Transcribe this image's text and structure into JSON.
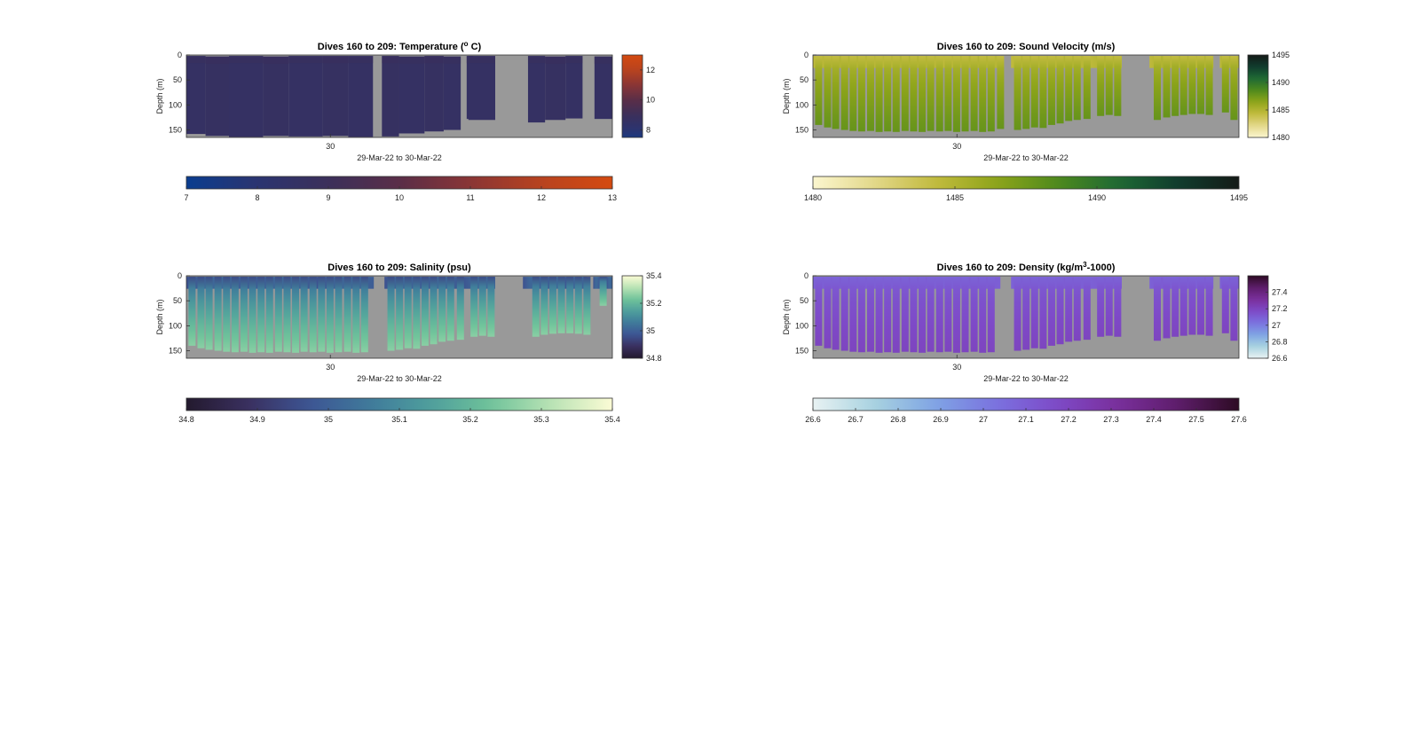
{
  "chart_data": [
    {
      "type": "heatmap",
      "variable": "temperature",
      "title_main": "Dives 160 to 209: Temperature (",
      "title_sup": "o",
      "title_tail": " C)",
      "ylabel": "Depth (m)",
      "xlabel": "29-Mar-22 to 30-Mar-22",
      "x_tick_labels": [
        "30"
      ],
      "y_ticks": [
        0,
        50,
        100,
        150
      ],
      "ylim": [
        0,
        165
      ],
      "colorbar_side_ticks": [
        8,
        10,
        12
      ],
      "colorbar_side_range": [
        7.5,
        13
      ],
      "colorbar_bottom_ticks": [
        7,
        8,
        9,
        10,
        11,
        12,
        13
      ],
      "colorbar_bottom_range": [
        7,
        13
      ],
      "colors": [
        "#0a3d8f",
        "#2b3470",
        "#3b2f5a",
        "#5a2e48",
        "#8a3535",
        "#b8431f",
        "#d44a10"
      ],
      "background_color": "#999999",
      "dives": [
        {
          "x": 0.0,
          "w": 0.045,
          "top": 2,
          "bottom": 158,
          "value": 8.6
        },
        {
          "x": 0.045,
          "w": 0.055,
          "top": 3,
          "bottom": 162,
          "value": 8.7
        },
        {
          "x": 0.1,
          "w": 0.08,
          "top": 2,
          "bottom": 164,
          "value": 8.6
        },
        {
          "x": 0.18,
          "w": 0.06,
          "top": 3,
          "bottom": 162,
          "value": 8.7
        },
        {
          "x": 0.24,
          "w": 0.08,
          "top": 2,
          "bottom": 163,
          "value": 8.6
        },
        {
          "x": 0.32,
          "w": 0.06,
          "top": 2,
          "bottom": 162,
          "value": 8.7
        },
        {
          "x": 0.38,
          "w": 0.058,
          "top": 2,
          "bottom": 164,
          "value": 8.6
        },
        {
          "x": 0.459,
          "w": 0.04,
          "top": 2,
          "bottom": 163,
          "value": 8.7
        },
        {
          "x": 0.499,
          "w": 0.06,
          "top": 3,
          "bottom": 157,
          "value": 8.6
        },
        {
          "x": 0.559,
          "w": 0.045,
          "top": 2,
          "bottom": 153,
          "value": 8.7
        },
        {
          "x": 0.604,
          "w": 0.04,
          "top": 3,
          "bottom": 150,
          "value": 8.6
        },
        {
          "x": 0.658,
          "w": 0.015,
          "top": 2,
          "bottom": 128,
          "value": 8.6
        },
        {
          "x": 0.662,
          "w": 0.063,
          "top": 2,
          "bottom": 130,
          "value": 8.6
        },
        {
          "x": 0.802,
          "w": 0.04,
          "top": 2,
          "bottom": 135,
          "value": 8.6
        },
        {
          "x": 0.842,
          "w": 0.048,
          "top": 3,
          "bottom": 130,
          "value": 8.7
        },
        {
          "x": 0.89,
          "w": 0.04,
          "top": 2,
          "bottom": 127,
          "value": 8.6
        },
        {
          "x": 0.958,
          "w": 0.042,
          "top": 3,
          "bottom": 128,
          "value": 8.6
        }
      ]
    },
    {
      "type": "heatmap",
      "variable": "sound_velocity",
      "title_main": "Dives 160 to 209: Sound Velocity (m/s)",
      "title_sup": "",
      "title_tail": "",
      "ylabel": "Depth (m)",
      "xlabel": "29-Mar-22 to 30-Mar-22",
      "x_tick_labels": [
        "30"
      ],
      "y_ticks": [
        0,
        50,
        100,
        150
      ],
      "ylim": [
        0,
        165
      ],
      "colorbar_side_ticks": [
        1480,
        1485,
        1490,
        1495
      ],
      "colorbar_side_range": [
        1480,
        1495
      ],
      "colorbar_bottom_ticks": [
        1480,
        1485,
        1490,
        1495
      ],
      "colorbar_bottom_range": [
        1480,
        1495
      ],
      "colors": [
        "#fbf6cf",
        "#e3d88a",
        "#c2bb3e",
        "#8fa51a",
        "#4f8a1c",
        "#1f6a34",
        "#103c2e",
        "#141a17"
      ],
      "background_color": "#999999",
      "profile_surface": 1484.2,
      "profile_deep": 1487.8,
      "dives": [
        {
          "x": 0.005,
          "bottom": 140
        },
        {
          "x": 0.026,
          "bottom": 145
        },
        {
          "x": 0.045,
          "bottom": 148
        },
        {
          "x": 0.066,
          "bottom": 150
        },
        {
          "x": 0.086,
          "bottom": 152
        },
        {
          "x": 0.106,
          "bottom": 153
        },
        {
          "x": 0.127,
          "bottom": 152
        },
        {
          "x": 0.147,
          "bottom": 154
        },
        {
          "x": 0.167,
          "bottom": 153
        },
        {
          "x": 0.187,
          "bottom": 154
        },
        {
          "x": 0.208,
          "bottom": 152
        },
        {
          "x": 0.228,
          "bottom": 153
        },
        {
          "x": 0.248,
          "bottom": 154
        },
        {
          "x": 0.268,
          "bottom": 152
        },
        {
          "x": 0.289,
          "bottom": 153
        },
        {
          "x": 0.309,
          "bottom": 152
        },
        {
          "x": 0.329,
          "bottom": 154
        },
        {
          "x": 0.349,
          "bottom": 153
        },
        {
          "x": 0.37,
          "bottom": 152
        },
        {
          "x": 0.39,
          "bottom": 154
        },
        {
          "x": 0.41,
          "bottom": 153
        },
        {
          "x": 0.432,
          "bottom": 148
        },
        {
          "x": 0.472,
          "bottom": 150
        },
        {
          "x": 0.492,
          "bottom": 148
        },
        {
          "x": 0.512,
          "bottom": 145
        },
        {
          "x": 0.532,
          "bottom": 146
        },
        {
          "x": 0.552,
          "bottom": 140
        },
        {
          "x": 0.572,
          "bottom": 137
        },
        {
          "x": 0.592,
          "bottom": 132
        },
        {
          "x": 0.612,
          "bottom": 130
        },
        {
          "x": 0.635,
          "bottom": 128
        },
        {
          "x": 0.667,
          "bottom": 122
        },
        {
          "x": 0.687,
          "bottom": 120
        },
        {
          "x": 0.707,
          "bottom": 122
        },
        {
          "x": 0.8,
          "bottom": 130
        },
        {
          "x": 0.822,
          "bottom": 125
        },
        {
          "x": 0.842,
          "bottom": 122
        },
        {
          "x": 0.862,
          "bottom": 120
        },
        {
          "x": 0.882,
          "bottom": 118
        },
        {
          "x": 0.902,
          "bottom": 118
        },
        {
          "x": 0.922,
          "bottom": 120
        },
        {
          "x": 0.96,
          "bottom": 115
        },
        {
          "x": 0.98,
          "bottom": 130
        }
      ]
    },
    {
      "type": "heatmap",
      "variable": "salinity",
      "title_main": "Dives 160 to 209: Salinity (psu)",
      "title_sup": "",
      "title_tail": "",
      "ylabel": "Depth (m)",
      "xlabel": "29-Mar-22 to 30-Mar-22",
      "x_tick_labels": [
        "30"
      ],
      "y_ticks": [
        0,
        50,
        100,
        150
      ],
      "ylim": [
        0,
        165
      ],
      "colorbar_side_ticks": [
        34.8,
        35,
        35.2,
        35.4
      ],
      "colorbar_side_range": [
        34.8,
        35.4
      ],
      "colorbar_bottom_ticks": [
        34.8,
        34.9,
        35,
        35.1,
        35.2,
        35.3,
        35.4
      ],
      "colorbar_bottom_range": [
        34.8,
        35.4
      ],
      "colors": [
        "#231a2e",
        "#3a2f5e",
        "#3d5493",
        "#3f7a9b",
        "#4e9e9c",
        "#6fc39a",
        "#b9e3b4",
        "#fbfbd5"
      ],
      "background_color": "#999999",
      "profile_surface": 34.95,
      "profile_deep": 35.26,
      "dives": [
        {
          "x": 0.005,
          "bottom": 140
        },
        {
          "x": 0.026,
          "bottom": 145
        },
        {
          "x": 0.045,
          "bottom": 148
        },
        {
          "x": 0.066,
          "bottom": 150
        },
        {
          "x": 0.086,
          "bottom": 152
        },
        {
          "x": 0.106,
          "bottom": 153
        },
        {
          "x": 0.127,
          "bottom": 152
        },
        {
          "x": 0.147,
          "bottom": 154
        },
        {
          "x": 0.167,
          "bottom": 153
        },
        {
          "x": 0.187,
          "bottom": 154
        },
        {
          "x": 0.208,
          "bottom": 152
        },
        {
          "x": 0.228,
          "bottom": 153
        },
        {
          "x": 0.248,
          "bottom": 154
        },
        {
          "x": 0.268,
          "bottom": 152
        },
        {
          "x": 0.289,
          "bottom": 153
        },
        {
          "x": 0.309,
          "bottom": 152
        },
        {
          "x": 0.329,
          "bottom": 154
        },
        {
          "x": 0.349,
          "bottom": 153
        },
        {
          "x": 0.37,
          "bottom": 152
        },
        {
          "x": 0.39,
          "bottom": 154
        },
        {
          "x": 0.41,
          "bottom": 153
        },
        {
          "x": 0.472,
          "bottom": 150
        },
        {
          "x": 0.492,
          "bottom": 148
        },
        {
          "x": 0.512,
          "bottom": 145
        },
        {
          "x": 0.532,
          "bottom": 146
        },
        {
          "x": 0.552,
          "bottom": 140
        },
        {
          "x": 0.572,
          "bottom": 137
        },
        {
          "x": 0.592,
          "bottom": 132
        },
        {
          "x": 0.612,
          "bottom": 130
        },
        {
          "x": 0.635,
          "bottom": 128
        },
        {
          "x": 0.667,
          "bottom": 122
        },
        {
          "x": 0.687,
          "bottom": 120
        },
        {
          "x": 0.707,
          "bottom": 122
        },
        {
          "x": 0.812,
          "bottom": 122
        },
        {
          "x": 0.832,
          "bottom": 118
        },
        {
          "x": 0.852,
          "bottom": 116
        },
        {
          "x": 0.872,
          "bottom": 115
        },
        {
          "x": 0.892,
          "bottom": 115
        },
        {
          "x": 0.912,
          "bottom": 116
        },
        {
          "x": 0.932,
          "bottom": 118
        },
        {
          "x": 0.97,
          "bottom": 60
        }
      ]
    },
    {
      "type": "heatmap",
      "variable": "density",
      "title_main": "Dives 160 to 209: Density (kg/m",
      "title_sup": "3",
      "title_tail": "-1000)",
      "ylabel": "Depth (m)",
      "xlabel": "29-Mar-22 to 30-Mar-22",
      "x_tick_labels": [
        "30"
      ],
      "y_ticks": [
        0,
        50,
        100,
        150
      ],
      "ylim": [
        0,
        165
      ],
      "colorbar_side_ticks": [
        26.6,
        26.8,
        27,
        27.2,
        27.4
      ],
      "colorbar_side_range": [
        26.6,
        27.6
      ],
      "colorbar_bottom_ticks": [
        26.6,
        26.7,
        26.8,
        26.9,
        27,
        27.1,
        27.2,
        27.3,
        27.4,
        27.5,
        27.6
      ],
      "colorbar_bottom_range": [
        26.6,
        27.6
      ],
      "colors": [
        "#e8f2f3",
        "#a8d2e0",
        "#7fa4e4",
        "#7a72df",
        "#7e4ac8",
        "#7a2f9c",
        "#5e1d6b",
        "#2d0b23"
      ],
      "background_color": "#999999",
      "profile_surface": 27.08,
      "profile_deep": 27.2,
      "dives": [
        {
          "x": 0.005,
          "bottom": 140
        },
        {
          "x": 0.026,
          "bottom": 145
        },
        {
          "x": 0.045,
          "bottom": 148
        },
        {
          "x": 0.066,
          "bottom": 150
        },
        {
          "x": 0.086,
          "bottom": 152
        },
        {
          "x": 0.106,
          "bottom": 153
        },
        {
          "x": 0.127,
          "bottom": 152
        },
        {
          "x": 0.147,
          "bottom": 154
        },
        {
          "x": 0.167,
          "bottom": 153
        },
        {
          "x": 0.187,
          "bottom": 154
        },
        {
          "x": 0.208,
          "bottom": 152
        },
        {
          "x": 0.228,
          "bottom": 153
        },
        {
          "x": 0.248,
          "bottom": 154
        },
        {
          "x": 0.268,
          "bottom": 152
        },
        {
          "x": 0.289,
          "bottom": 153
        },
        {
          "x": 0.309,
          "bottom": 152
        },
        {
          "x": 0.329,
          "bottom": 154
        },
        {
          "x": 0.349,
          "bottom": 153
        },
        {
          "x": 0.37,
          "bottom": 152
        },
        {
          "x": 0.39,
          "bottom": 154
        },
        {
          "x": 0.41,
          "bottom": 153
        },
        {
          "x": 0.472,
          "bottom": 150
        },
        {
          "x": 0.492,
          "bottom": 148
        },
        {
          "x": 0.512,
          "bottom": 145
        },
        {
          "x": 0.532,
          "bottom": 146
        },
        {
          "x": 0.552,
          "bottom": 140
        },
        {
          "x": 0.572,
          "bottom": 137
        },
        {
          "x": 0.592,
          "bottom": 132
        },
        {
          "x": 0.612,
          "bottom": 130
        },
        {
          "x": 0.635,
          "bottom": 128
        },
        {
          "x": 0.667,
          "bottom": 122
        },
        {
          "x": 0.687,
          "bottom": 120
        },
        {
          "x": 0.707,
          "bottom": 122
        },
        {
          "x": 0.8,
          "bottom": 130
        },
        {
          "x": 0.822,
          "bottom": 125
        },
        {
          "x": 0.842,
          "bottom": 122
        },
        {
          "x": 0.862,
          "bottom": 120
        },
        {
          "x": 0.882,
          "bottom": 118
        },
        {
          "x": 0.902,
          "bottom": 118
        },
        {
          "x": 0.922,
          "bottom": 120
        },
        {
          "x": 0.96,
          "bottom": 115
        },
        {
          "x": 0.98,
          "bottom": 130
        }
      ]
    }
  ]
}
